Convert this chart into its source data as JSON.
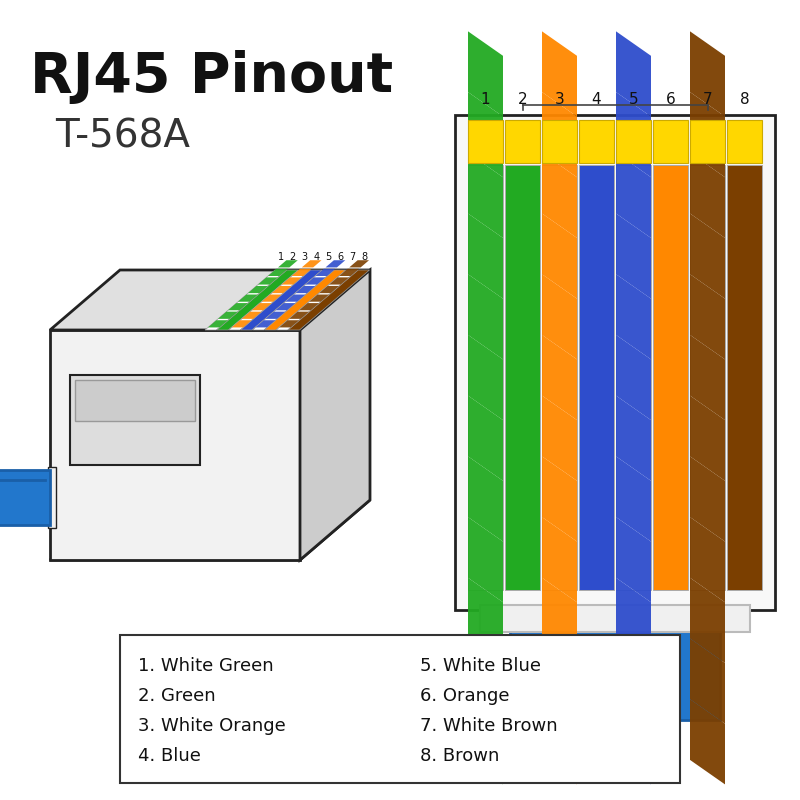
{
  "title_line1": "RJ45 Pinout",
  "title_line2": "T-568A",
  "background_color": "#ffffff",
  "wire_colors": [
    {
      "name": "White Green",
      "solid": "#ffffff",
      "stripe": "#22aa22"
    },
    {
      "name": "Green",
      "solid": "#22aa22",
      "stripe": null
    },
    {
      "name": "White Orange",
      "solid": "#ffffff",
      "stripe": "#ff8800"
    },
    {
      "name": "Blue",
      "solid": "#2e4dcc",
      "stripe": null
    },
    {
      "name": "White Blue",
      "solid": "#ffffff",
      "stripe": "#2e4dcc"
    },
    {
      "name": "Orange",
      "solid": "#ff8800",
      "stripe": null
    },
    {
      "name": "White Brown",
      "solid": "#ffffff",
      "stripe": "#7B3F00"
    },
    {
      "name": "Brown",
      "solid": "#7B3F00",
      "stripe": null
    }
  ],
  "pin_top_color": "#FFD700",
  "pin_top_border": "#ccaa00",
  "connector_fill": "#f8f8f8",
  "connector_border": "#222222",
  "cable_color": "#2277cc",
  "cable_border": "#1a5fa8",
  "relief_fill": "#f0f0f0",
  "relief_border": "#bbbbbb",
  "legend_left": [
    "1. White Green",
    "2. Green",
    "3. White Orange",
    "4. Blue"
  ],
  "legend_right": [
    "5. White Blue",
    "6. Orange",
    "7. White Brown",
    "8. Brown"
  ],
  "bracket_color": "#444444",
  "body_light": "#f2f2f2",
  "body_mid": "#e0e0e0",
  "body_dark": "#cccccc",
  "wire_border": "#aaaaaa"
}
